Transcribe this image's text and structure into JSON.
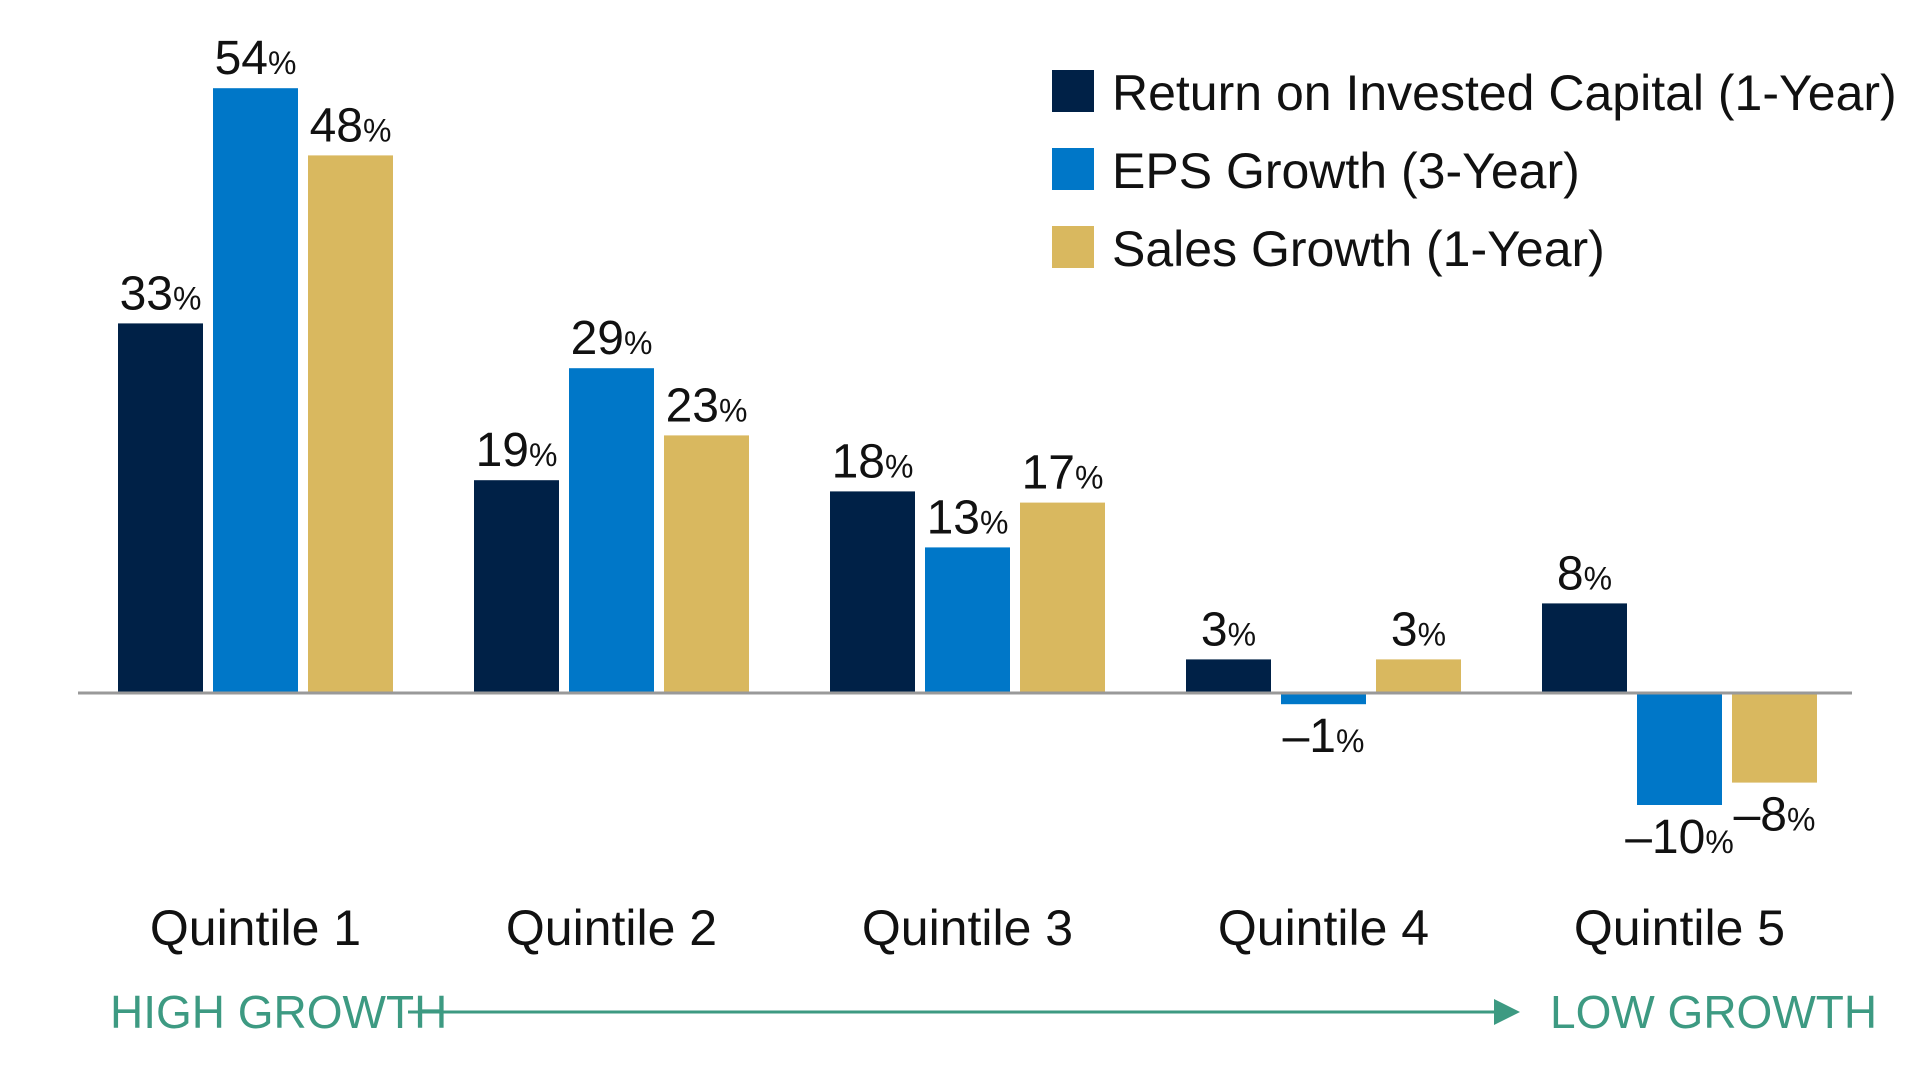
{
  "chart_data": {
    "type": "bar",
    "title": "",
    "xlabel": "",
    "ylabel": "",
    "ylim": [
      -12,
      56
    ],
    "unit": "%",
    "grid": false,
    "legend_position": "top-right",
    "categories": [
      "Quintile 1",
      "Quintile 2",
      "Quintile 3",
      "Quintile 4",
      "Quintile 5"
    ],
    "series": [
      {
        "name": "Return on Invested Capital (1-Year)",
        "color": "#002147",
        "values": [
          33,
          19,
          18,
          3,
          8
        ],
        "labels": [
          "33",
          "19",
          "18",
          "3",
          "8"
        ]
      },
      {
        "name": "EPS Growth (3-Year)",
        "color": "#0077c8",
        "values": [
          54,
          29,
          13,
          -1,
          -10
        ],
        "labels": [
          "54",
          "29",
          "13",
          "–1",
          "–10"
        ]
      },
      {
        "name": "Sales Growth (1-Year)",
        "color": "#d9b85f",
        "values": [
          48,
          23,
          17,
          3,
          -8
        ],
        "labels": [
          "48",
          "23",
          "17",
          "3",
          "–8"
        ]
      }
    ],
    "axis_annotation": {
      "start": "HIGH GROWTH",
      "end": "LOW GROWTH",
      "color": "#3d9a82"
    },
    "zero_line_color": "#999999"
  }
}
